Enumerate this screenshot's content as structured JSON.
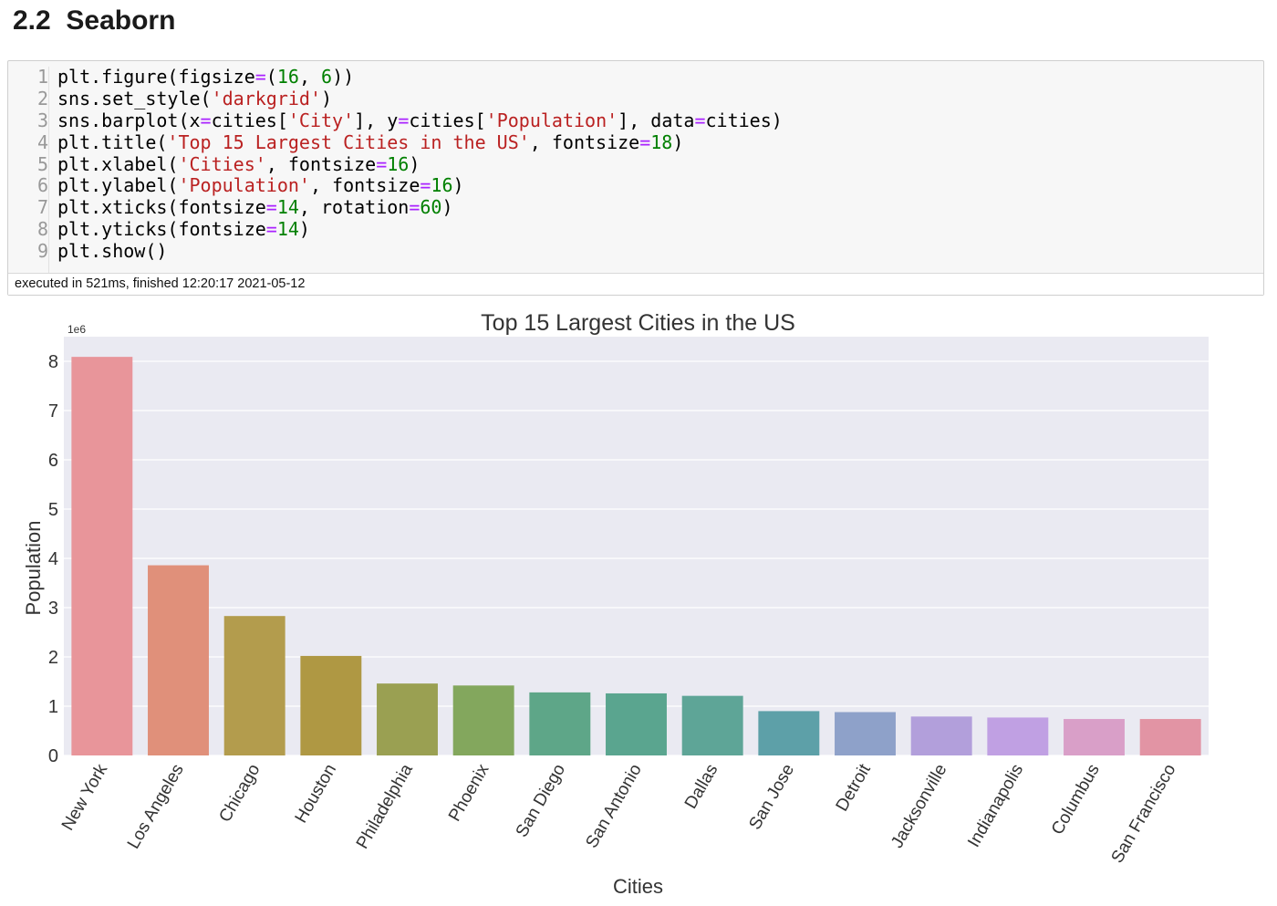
{
  "notebook": {
    "section_heading": "2.2  Seaborn",
    "cell": {
      "code_lines": [
        {
          "n": "1",
          "tokens": [
            [
              "plt.figure(figsize",
              ""
            ],
            [
              "=",
              "op"
            ],
            [
              "(",
              ""
            ],
            [
              "16",
              "num"
            ],
            [
              ", ",
              ""
            ],
            [
              "6",
              "num"
            ],
            [
              "))",
              ""
            ]
          ]
        },
        {
          "n": "2",
          "tokens": [
            [
              "sns.set_style(",
              ""
            ],
            [
              "'darkgrid'",
              "str"
            ],
            [
              ")",
              ""
            ]
          ]
        },
        {
          "n": "3",
          "tokens": [
            [
              "sns.barplot(x",
              ""
            ],
            [
              "=",
              "op"
            ],
            [
              "cities[",
              ""
            ],
            [
              "'City'",
              "str"
            ],
            [
              "], y",
              ""
            ],
            [
              "=",
              "op"
            ],
            [
              "cities[",
              ""
            ],
            [
              "'Population'",
              "str"
            ],
            [
              "], data",
              ""
            ],
            [
              "=",
              "op"
            ],
            [
              "cities)",
              ""
            ]
          ]
        },
        {
          "n": "4",
          "tokens": [
            [
              "plt.title(",
              ""
            ],
            [
              "'Top 15 Largest Cities in the US'",
              "str"
            ],
            [
              ", fontsize",
              ""
            ],
            [
              "=",
              "op"
            ],
            [
              "18",
              "num"
            ],
            [
              ")",
              ""
            ]
          ]
        },
        {
          "n": "5",
          "tokens": [
            [
              "plt.xlabel(",
              ""
            ],
            [
              "'Cities'",
              "str"
            ],
            [
              ", fontsize",
              ""
            ],
            [
              "=",
              "op"
            ],
            [
              "16",
              "num"
            ],
            [
              ")",
              ""
            ]
          ]
        },
        {
          "n": "6",
          "tokens": [
            [
              "plt.ylabel(",
              ""
            ],
            [
              "'Population'",
              "str"
            ],
            [
              ", fontsize",
              ""
            ],
            [
              "=",
              "op"
            ],
            [
              "16",
              "num"
            ],
            [
              ")",
              ""
            ]
          ]
        },
        {
          "n": "7",
          "tokens": [
            [
              "plt.xticks(fontsize",
              ""
            ],
            [
              "=",
              "op"
            ],
            [
              "14",
              "num"
            ],
            [
              ", rotation",
              ""
            ],
            [
              "=",
              "op"
            ],
            [
              "60",
              "num"
            ],
            [
              ")",
              ""
            ]
          ]
        },
        {
          "n": "8",
          "tokens": [
            [
              "plt.yticks(fontsize",
              ""
            ],
            [
              "=",
              "op"
            ],
            [
              "14",
              "num"
            ],
            [
              ")",
              ""
            ]
          ]
        },
        {
          "n": "9",
          "tokens": [
            [
              "plt.show()",
              ""
            ]
          ]
        }
      ],
      "execution_status": "executed in 521ms, finished 12:20:17 2021-05-12"
    }
  },
  "chart_data": {
    "type": "bar",
    "title": "Top 15 Largest Cities in the US",
    "xlabel": "Cities",
    "ylabel": "Population",
    "offset_label": "1e6",
    "categories": [
      "New York",
      "Los Angeles",
      "Chicago",
      "Houston",
      "Philadelphia",
      "Phoenix",
      "San Diego",
      "San Antonio",
      "Dallas",
      "San Jose",
      "Detroit",
      "Jacksonville",
      "Indianapolis",
      "Columbus",
      "San Francisco"
    ],
    "values": [
      8.09,
      3.86,
      2.83,
      2.02,
      1.46,
      1.42,
      1.28,
      1.26,
      1.21,
      0.9,
      0.88,
      0.79,
      0.77,
      0.74,
      0.74
    ],
    "yticks": [
      "0",
      "1",
      "2",
      "3",
      "4",
      "5",
      "6",
      "7",
      "8"
    ],
    "ylim": [
      0,
      8.5
    ],
    "grid": true,
    "style": "darkgrid",
    "colors": [
      "#e8959a",
      "#e0907a",
      "#b39c4d",
      "#af9843",
      "#9aa052",
      "#83a75d",
      "#5ea688",
      "#5aa58f",
      "#5ea597",
      "#5da0a8",
      "#8ea1c9",
      "#b29fdb",
      "#c0a0e3",
      "#d99fc8",
      "#e294a4"
    ],
    "background_color": "#eaeaf2",
    "text_color": "#333333"
  }
}
